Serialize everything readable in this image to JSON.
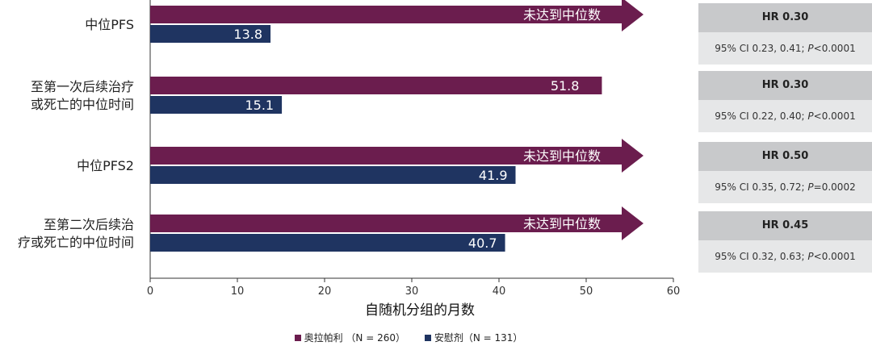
{
  "chart_data": {
    "type": "bar",
    "orientation": "horizontal",
    "categories": [
      [
        "中位PFS"
      ],
      [
        "至第一次后续治疗",
        "或死亡的中位时间"
      ],
      [
        "中位PFS2"
      ],
      [
        "至第二次后续治",
        "疗或死亡的中位时间"
      ]
    ],
    "series": [
      {
        "name": "奥拉帕利 （N = 260）",
        "color": "#6b1d4e",
        "values": [
          null,
          51.8,
          null,
          null
        ],
        "labels": [
          "未达到中位数",
          "51.8",
          "未达到中位数",
          "未达到中位数"
        ],
        "not_reached": [
          true,
          false,
          true,
          true
        ]
      },
      {
        "name": "安慰剂（N = 131）",
        "color": "#1f3461",
        "values": [
          13.8,
          15.1,
          41.9,
          40.7
        ],
        "labels": [
          "13.8",
          "15.1",
          "41.9",
          "40.7"
        ]
      }
    ],
    "xlabel": "自随机分组的月数",
    "xlim": [
      0,
      60
    ],
    "xticks": [
      0,
      10,
      20,
      30,
      40,
      50,
      60
    ],
    "grid": false,
    "legend_position": "bottom"
  },
  "hazard_ratios": [
    {
      "hr": "HR 0.30",
      "ci": "95% CI 0.23, 0.41; ",
      "p_sym": "P",
      "p_rest": "<0.0001"
    },
    {
      "hr": "HR 0.30",
      "ci": "95% CI 0.22, 0.40; ",
      "p_sym": "P",
      "p_rest": "<0.0001"
    },
    {
      "hr": "HR 0.50",
      "ci": "95% CI 0.35, 0.72; ",
      "p_sym": "P",
      "p_rest": "=0.0002"
    },
    {
      "hr": "HR 0.45",
      "ci": "95% CI 0.32, 0.63; ",
      "p_sym": "P",
      "p_rest": "<0.0001"
    }
  ]
}
